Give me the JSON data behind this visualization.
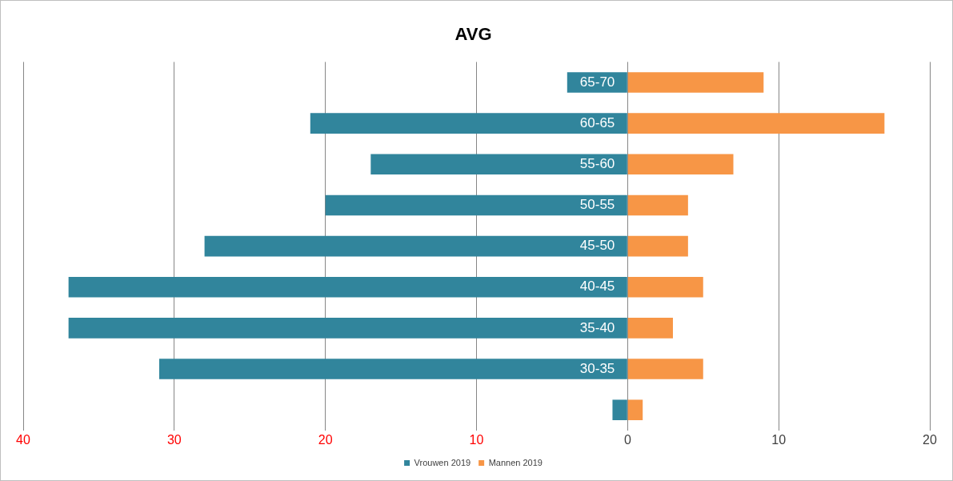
{
  "chart_data": {
    "type": "bar",
    "title": "AVG",
    "orientation": "horizontal",
    "stacked": true,
    "categories": [
      "65-70",
      "60-65",
      "55-60",
      "50-55",
      "45-50",
      "40-45",
      "35-40",
      "30-35",
      null
    ],
    "series": [
      {
        "name": "Vrouwen 2019",
        "color": "#31859c",
        "values": [
          -4,
          -21,
          -17,
          -20,
          -28,
          -37,
          -37,
          -31,
          -1
        ]
      },
      {
        "name": "Mannen 2019",
        "color": "#f79646",
        "values": [
          9,
          17,
          7,
          4,
          4,
          5,
          3,
          5,
          1
        ]
      }
    ],
    "xlim": [
      -40,
      20
    ],
    "xticks": [
      {
        "value": -40,
        "label": "40"
      },
      {
        "value": -30,
        "label": "30"
      },
      {
        "value": -20,
        "label": "20"
      },
      {
        "value": -10,
        "label": "10"
      },
      0,
      10,
      20
    ],
    "grid": "x",
    "legend": "bottom"
  }
}
